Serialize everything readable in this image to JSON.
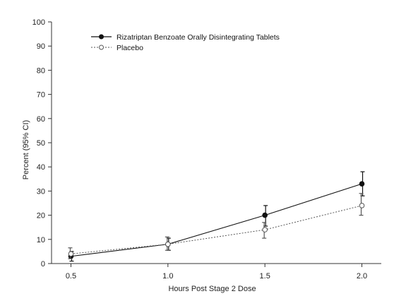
{
  "chart_data": {
    "type": "line",
    "title": "",
    "xlabel": "Hours Post Stage 2 Dose",
    "ylabel": "Percent (95% CI)",
    "x": [
      0.5,
      1.0,
      1.5,
      2.0
    ],
    "x_tick_labels": [
      "0.5",
      "1.0",
      "1.5",
      "2.0"
    ],
    "xlim": [
      0.4,
      2.1
    ],
    "ylim": [
      0,
      100
    ],
    "y_ticks": [
      0,
      10,
      20,
      30,
      40,
      50,
      60,
      70,
      80,
      90,
      100
    ],
    "grid": false,
    "legend_position": "top-left",
    "series": [
      {
        "name": "Rizatriptan Benzoate Orally Disintegrating Tablets",
        "values": [
          3,
          8,
          20,
          33
        ],
        "ci_low": [
          1,
          5.5,
          15.5,
          28
        ],
        "ci_high": [
          5,
          10.5,
          24,
          38
        ],
        "marker": "filled-circle",
        "line_style": "solid",
        "color": "#111111"
      },
      {
        "name": "Placebo",
        "values": [
          4,
          8,
          14,
          24
        ],
        "ci_low": [
          2,
          5.5,
          10.5,
          20
        ],
        "ci_high": [
          6.5,
          11,
          17,
          29
        ],
        "marker": "open-circle",
        "line_style": "dotted",
        "color": "#555555"
      }
    ]
  }
}
